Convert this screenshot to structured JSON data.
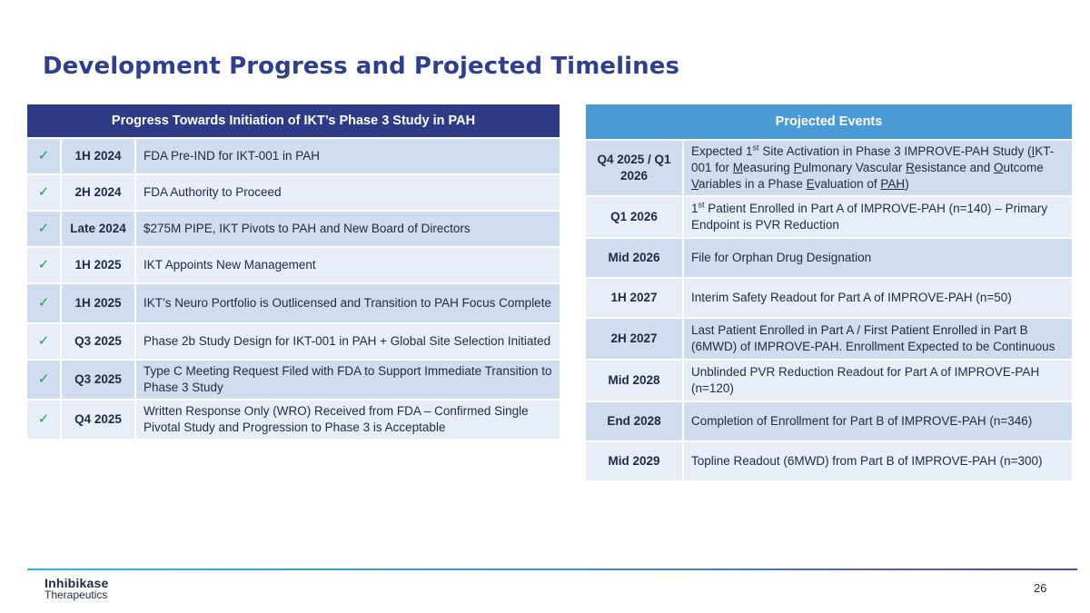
{
  "title": "Development Progress and Projected Timelines",
  "progress_table": {
    "header": "Progress Towards Initiation of IKT’s Phase 3 Study in PAH",
    "check_color": "#1aa04a",
    "rows": [
      {
        "check": "✓",
        "when": "1H 2024",
        "event": "FDA Pre-IND for IKT-001 in PAH"
      },
      {
        "check": "✓",
        "when": "2H 2024",
        "event": "FDA Authority to Proceed"
      },
      {
        "check": "✓",
        "when": "Late 2024",
        "event": "$275M PIPE, IKT Pivots to PAH and New Board of Directors"
      },
      {
        "check": "✓",
        "when": "1H 2025",
        "event": "IKT Appoints New Management"
      },
      {
        "check": "✓",
        "when": "1H 2025",
        "event": "IKT’s Neuro Portfolio is Outlicensed and Transition to PAH Focus Complete"
      },
      {
        "check": "✓",
        "when": "Q3 2025",
        "event": "Phase 2b Study Design for IKT-001 in PAH + Global Site Selection Initiated"
      },
      {
        "check": "✓",
        "when": "Q3 2025",
        "event": "Type C Meeting Request Filed with FDA to Support Immediate Transition to Phase 3 Study"
      },
      {
        "check": "✓",
        "when": "Q4 2025",
        "event": "Written Response Only (WRO) Received from FDA – Confirmed Single Pivotal Study and Progression to Phase 3 is Acceptable"
      }
    ]
  },
  "events_table": {
    "header": "Projected Events",
    "row1": {
      "when": "Q4 2025 / Q1 2026",
      "p1": "Expected 1",
      "p1_sup": "st",
      "p2": " Site Activation in Phase 3 IMPROVE-PAH Study (",
      "u1": "I",
      "p3": "KT-001 for ",
      "u2": "M",
      "p4": "easuring ",
      "u3": "P",
      "p5": "ulmonary Vascular ",
      "u4": "R",
      "p6": "esistance and ",
      "u5": "O",
      "p7": "utcome ",
      "u6": "V",
      "p8": "ariables in a Phase ",
      "u7": "E",
      "p9": "valuation of ",
      "u8": "PAH",
      "p10": ")"
    },
    "row2": {
      "when": "Q1 2026",
      "p1": "1",
      "p1_sup": "st",
      "p2": " Patient Enrolled in Part A of IMPROVE-PAH (n=140) – Primary Endpoint is PVR Reduction"
    },
    "rows": [
      {
        "when": "Mid 2026",
        "event": "File for Orphan Drug Designation"
      },
      {
        "when": "1H 2027",
        "event": "Interim Safety Readout for Part A of IMPROVE-PAH (n=50)"
      },
      {
        "when": "2H 2027",
        "event": "Last Patient Enrolled in Part A / First Patient Enrolled in Part B (6MWD) of IMPROVE-PAH.  Enrollment Expected to be Continuous"
      },
      {
        "when": "Mid 2028",
        "event": "Unblinded PVR Reduction Readout for Part A of IMPROVE-PAH (n=120)"
      },
      {
        "when": "End 2028",
        "event": "Completion of Enrollment for Part B of IMPROVE-PAH (n=346)"
      },
      {
        "when": "Mid 2029",
        "event": "Topline Readout (6MWD) from Part B of IMPROVE-PAH (n=300)"
      }
    ]
  },
  "footer": {
    "logo_line1": "Inhibikase",
    "logo_line2": "Therapeutics",
    "page_number": "26"
  }
}
